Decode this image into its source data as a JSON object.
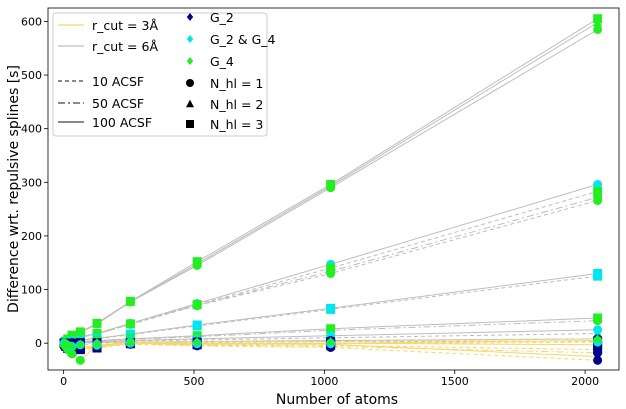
{
  "chart_data": {
    "type": "line",
    "title": "",
    "xlabel": "Number of atoms",
    "ylabel": "Difference wrt. repulsive splines [s]",
    "xlim": [
      -60,
      2130
    ],
    "ylim": [
      -50,
      625
    ],
    "xticks": [
      0,
      500,
      1000,
      1500,
      2000
    ],
    "yticks": [
      0,
      100,
      200,
      300,
      400,
      500,
      600
    ],
    "grid": false,
    "legend_position": "top-left",
    "x": [
      2,
      4,
      8,
      16,
      32,
      64,
      128,
      256,
      512,
      1024,
      2048
    ],
    "colors": {
      "rcut3": "#f5d76e",
      "rcut6": "#bdbdbd",
      "G2": "#00008b",
      "G2G4": "#00e5ee",
      "G4": "#22ee22"
    },
    "legend": {
      "col1": [
        {
          "label": "r_cut = 3Å",
          "kind": "line",
          "style": "solid",
          "color": "#f5d76e"
        },
        {
          "label": "r_cut = 6Å",
          "kind": "line",
          "style": "solid",
          "color": "#bdbdbd"
        },
        {
          "label": "10 ACSF",
          "kind": "line",
          "style": "dashed",
          "color": "#444444"
        },
        {
          "label": "50 ACSF",
          "kind": "line",
          "style": "dashdot",
          "color": "#444444"
        },
        {
          "label": "100 ACSF",
          "kind": "line",
          "style": "solid",
          "color": "#444444"
        }
      ],
      "col2": [
        {
          "label": "G_2",
          "kind": "marker",
          "marker": "diamond",
          "color": "#00008b"
        },
        {
          "label": "G_2 & G_4",
          "kind": "marker",
          "marker": "diamond",
          "color": "#00e5ee"
        },
        {
          "label": "G_4",
          "kind": "marker",
          "marker": "diamond",
          "color": "#22ee22"
        },
        {
          "label": "N_hl = 1",
          "kind": "marker",
          "marker": "circle",
          "color": "#000000"
        },
        {
          "label": "N_hl = 2",
          "kind": "marker",
          "marker": "triangle",
          "color": "#000000"
        },
        {
          "label": "N_hl = 3",
          "kind": "marker",
          "marker": "square",
          "color": "#000000"
        }
      ]
    },
    "series": [
      {
        "rcut": 6,
        "style": "solid",
        "color": "#22ee22",
        "marker": "circle",
        "values": [
          0,
          1,
          3,
          7,
          14,
          20,
          36,
          77,
          145,
          290,
          585
        ]
      },
      {
        "rcut": 6,
        "style": "solid",
        "color": "#22ee22",
        "marker": "square",
        "values": [
          0,
          2,
          4,
          8,
          15,
          21,
          37,
          78,
          152,
          296,
          605
        ]
      },
      {
        "rcut": 6,
        "style": "solid",
        "color": "#22ee22",
        "marker": "triangle",
        "values": [
          0,
          1,
          3,
          7,
          14,
          20,
          36,
          77,
          148,
          293,
          598
        ]
      },
      {
        "rcut": 6,
        "style": "solid",
        "color": "#00e5ee",
        "marker": "circle",
        "values": [
          0,
          1,
          2,
          4,
          8,
          12,
          18,
          37,
          74,
          147,
          296
        ]
      },
      {
        "rcut": 6,
        "style": "dashed",
        "color": "#22ee22",
        "marker": "square",
        "values": [
          0,
          1,
          2,
          4,
          8,
          12,
          18,
          36,
          72,
          140,
          283
        ]
      },
      {
        "rcut": 6,
        "style": "dashdot",
        "color": "#22ee22",
        "marker": "circle",
        "values": [
          0,
          1,
          2,
          4,
          8,
          11,
          17,
          36,
          71,
          134,
          272
        ]
      },
      {
        "rcut": 6,
        "style": "dashed",
        "color": "#22ee22",
        "marker": "circle",
        "values": [
          0,
          1,
          2,
          4,
          8,
          11,
          17,
          35,
          70,
          130,
          266
        ]
      },
      {
        "rcut": 6,
        "style": "solid",
        "color": "#00e5ee",
        "marker": "square",
        "values": [
          0,
          1,
          1,
          2,
          4,
          6,
          9,
          17,
          34,
          65,
          130
        ]
      },
      {
        "rcut": 6,
        "style": "dashed",
        "color": "#00e5ee",
        "marker": "square",
        "values": [
          0,
          1,
          1,
          2,
          4,
          6,
          8,
          16,
          32,
          63,
          125
        ]
      },
      {
        "rcut": 6,
        "style": "solid",
        "color": "#22ee22",
        "marker": "square",
        "values": [
          0,
          0,
          1,
          1,
          2,
          3,
          5,
          8,
          14,
          27,
          47
        ]
      },
      {
        "rcut": 6,
        "style": "dashdot",
        "color": "#22ee22",
        "marker": "circle",
        "values": [
          0,
          0,
          1,
          1,
          2,
          3,
          4,
          7,
          12,
          24,
          42
        ]
      },
      {
        "rcut": 6,
        "style": "solid",
        "color": "#00e5ee",
        "marker": "circle",
        "values": [
          0,
          0,
          0,
          1,
          1,
          2,
          3,
          5,
          8,
          14,
          25
        ]
      },
      {
        "rcut": 6,
        "style": "dashed",
        "color": "#00e5ee",
        "marker": "triangle",
        "values": [
          0,
          0,
          0,
          1,
          1,
          2,
          2,
          4,
          6,
          10,
          18
        ]
      },
      {
        "rcut": 6,
        "style": "solid",
        "color": "#00008b",
        "marker": "circle",
        "values": [
          0,
          0,
          0,
          0,
          1,
          1,
          1,
          2,
          3,
          5,
          8
        ]
      },
      {
        "rcut": 6,
        "style": "dashed",
        "color": "#00008b",
        "marker": "square",
        "values": [
          0,
          0,
          0,
          0,
          0,
          1,
          1,
          1,
          2,
          3,
          4
        ]
      },
      {
        "rcut": 3,
        "style": "solid",
        "color": "#00008b",
        "marker": "square",
        "values": [
          0,
          -2,
          -5,
          -9,
          -13,
          -10,
          -8,
          0,
          -2,
          0,
          -3
        ]
      },
      {
        "rcut": 3,
        "style": "dashed",
        "color": "#00008b",
        "marker": "square",
        "values": [
          0,
          -3,
          -6,
          -10,
          -15,
          -12,
          -9,
          -1,
          -3,
          -4,
          -12
        ]
      },
      {
        "rcut": 3,
        "style": "dashdot",
        "color": "#00008b",
        "marker": "circle",
        "values": [
          0,
          -2,
          -4,
          -8,
          -12,
          -9,
          -7,
          -1,
          -4,
          -6,
          -18
        ]
      },
      {
        "rcut": 3,
        "style": "solid",
        "color": "#00008b",
        "marker": "triangle",
        "values": [
          0,
          -1,
          -3,
          -6,
          -10,
          -8,
          -5,
          1,
          -1,
          -2,
          -25
        ]
      },
      {
        "rcut": 3,
        "style": "dashed",
        "color": "#00008b",
        "marker": "circle",
        "values": [
          0,
          -2,
          -5,
          -9,
          -14,
          -11,
          -7,
          -2,
          -5,
          -8,
          -32
        ]
      },
      {
        "rcut": 3,
        "style": "solid",
        "color": "#22ee22",
        "marker": "circle",
        "values": [
          0,
          -3,
          -6,
          -12,
          -20,
          -32,
          -4,
          2,
          0,
          0,
          5
        ]
      },
      {
        "rcut": 3,
        "style": "dashed",
        "color": "#00e5ee",
        "marker": "circle",
        "values": [
          0,
          -1,
          -2,
          -4,
          -6,
          -3,
          -2,
          0,
          -1,
          -1,
          2
        ]
      },
      {
        "rcut": 3,
        "style": "dashdot",
        "color": "#22ee22",
        "marker": "triangle",
        "values": [
          0,
          -1,
          -2,
          -3,
          -5,
          -2,
          1,
          2,
          3,
          3,
          8
        ]
      }
    ]
  }
}
